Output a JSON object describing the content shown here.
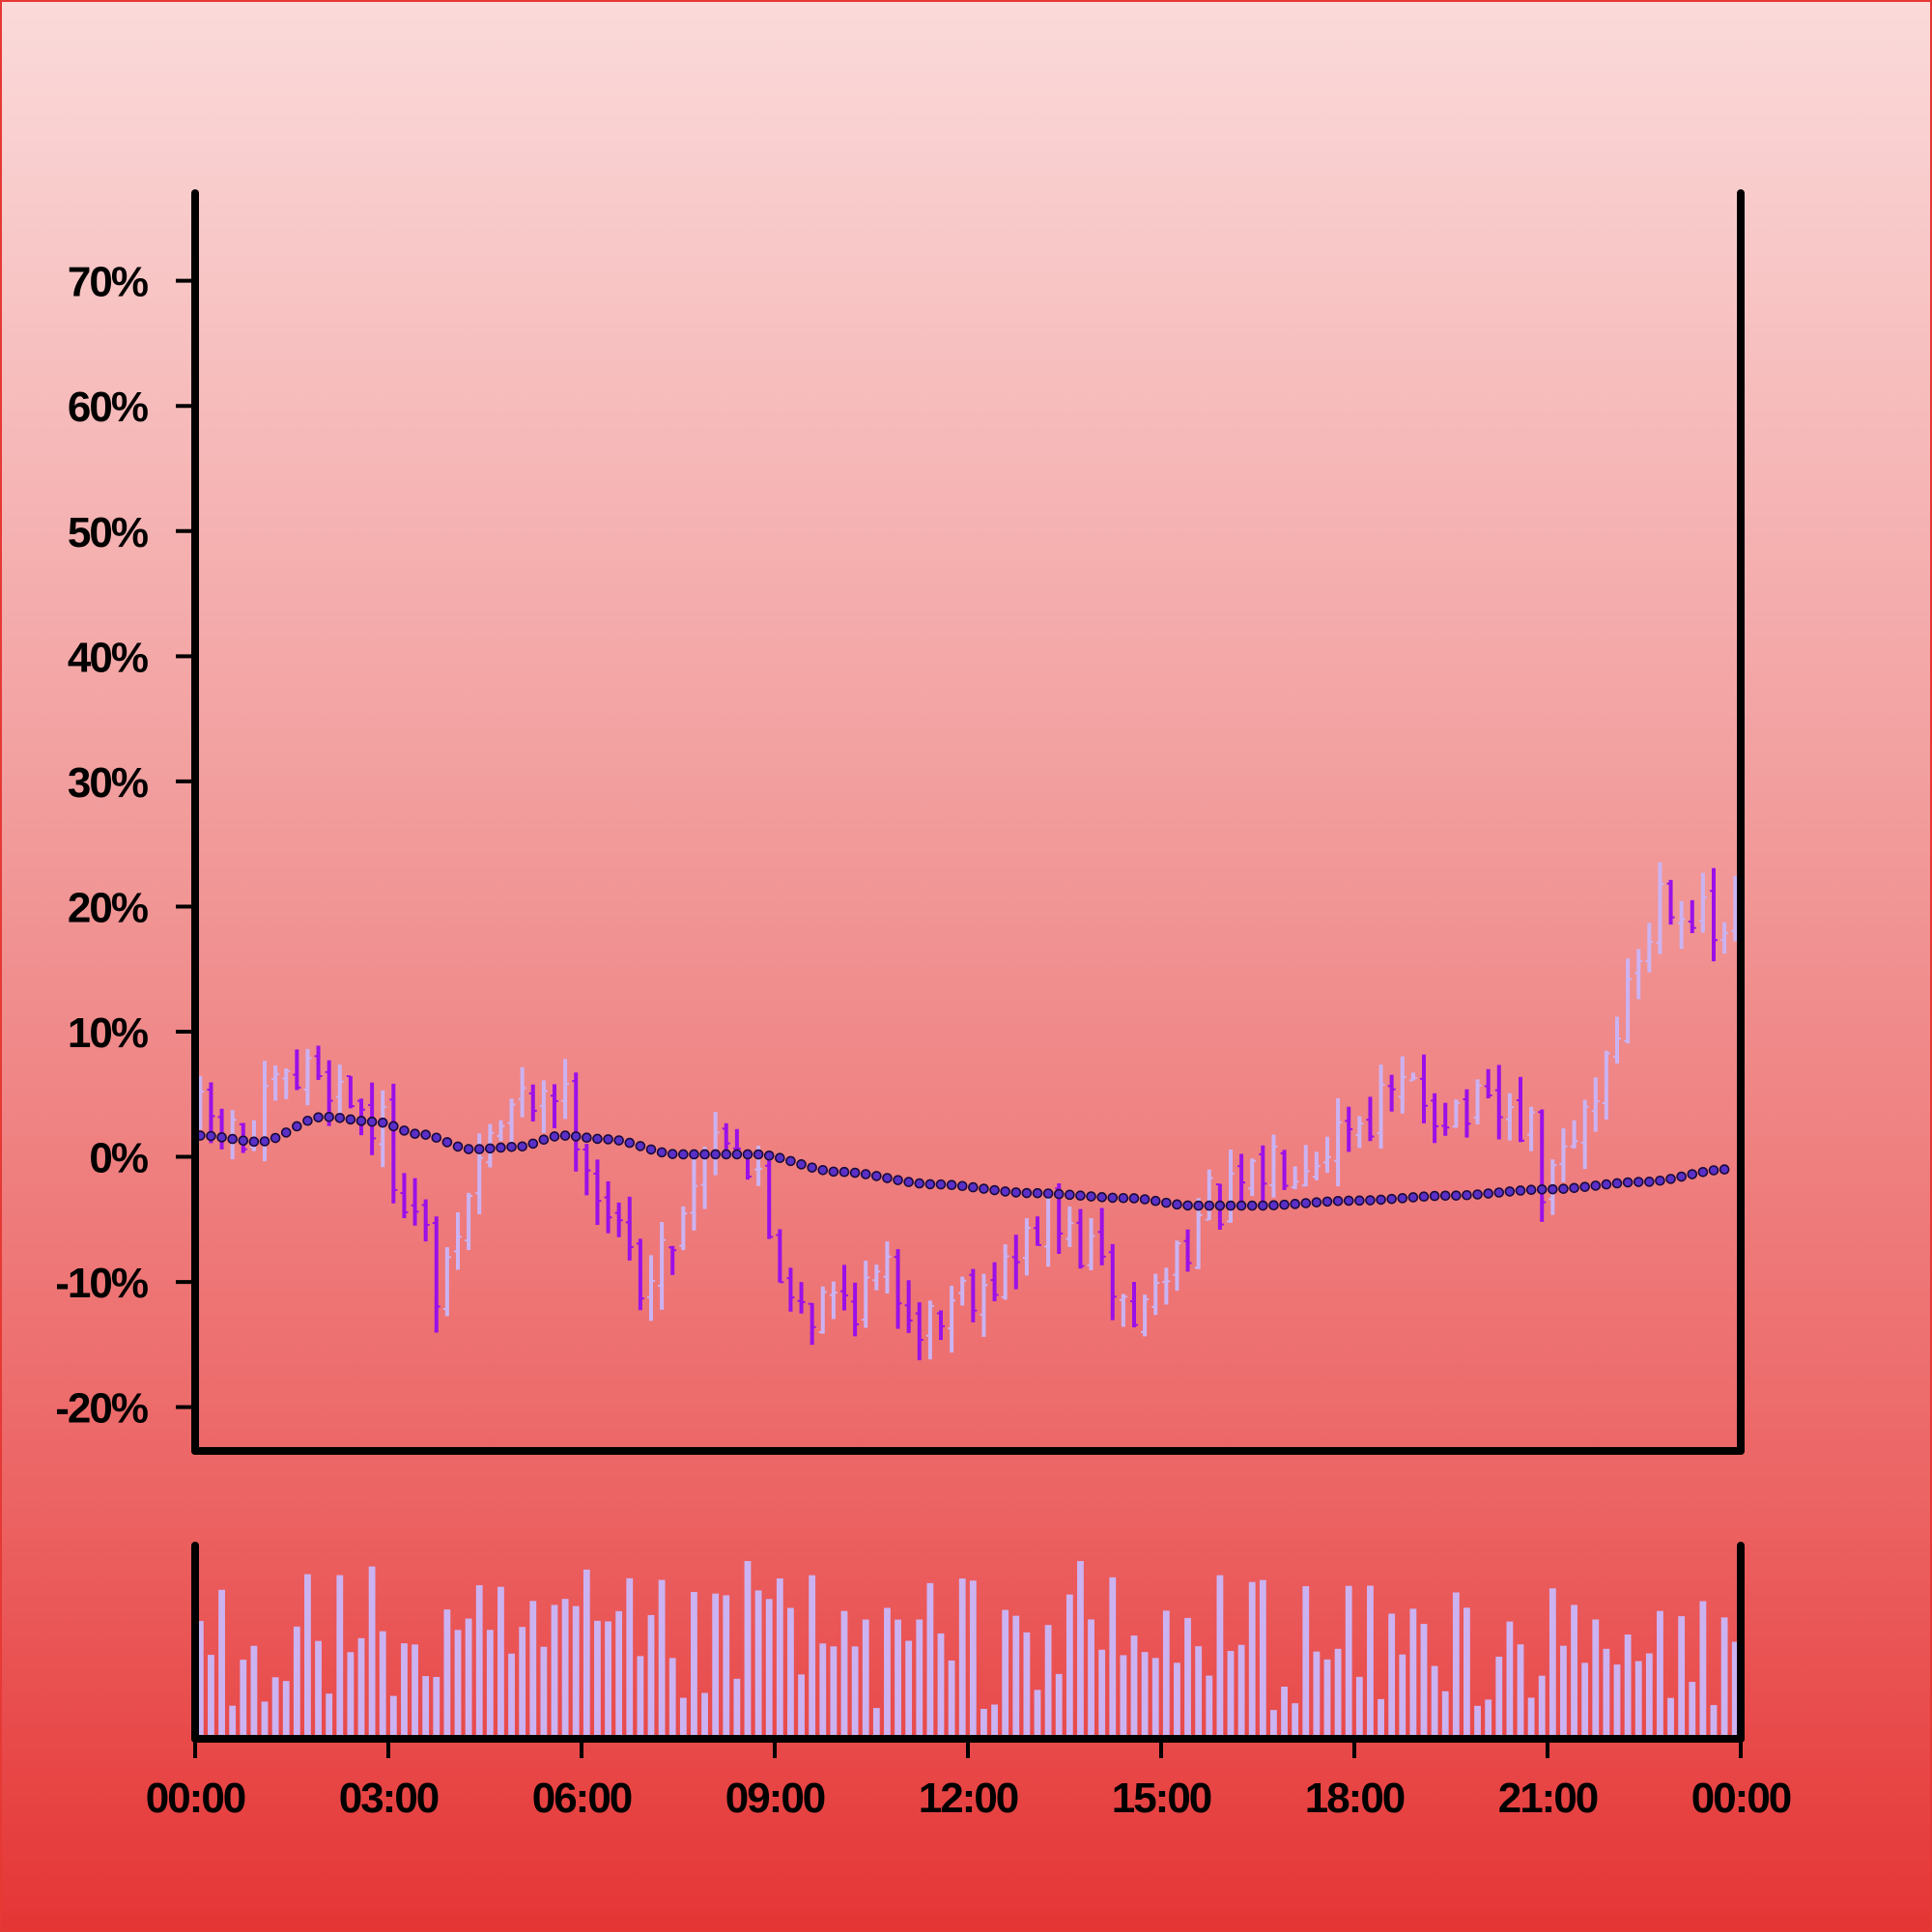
{
  "chart_data": [
    {
      "type": "ohlc",
      "y_tick_labels": [
        "70%",
        "60%",
        "50%",
        "40%",
        "30%",
        "20%",
        "10%",
        "0%",
        "-10%",
        "-20%"
      ],
      "y_tick_values": [
        70,
        60,
        50,
        40,
        30,
        20,
        10,
        0,
        -10,
        -20
      ],
      "ylim": [
        -23.5,
        77.0
      ],
      "x_tick_labels": [
        "00:00",
        "03:00",
        "06:00",
        "09:00",
        "12:00",
        "15:00",
        "18:00",
        "21:00",
        "00:00"
      ],
      "x_tick_hours": [
        0,
        3,
        6,
        9,
        12,
        15,
        18,
        21,
        24
      ],
      "xlim_hours": [
        0,
        24
      ],
      "interval_minutes": 10,
      "grid": false,
      "colors": {
        "up": "#cbb3f2",
        "down": "#9b10e8",
        "trend_dot": "#5a30c8",
        "trend_dot_edge": "#1a0a3a"
      },
      "close_anchors": [
        {
          "hour": 0.1,
          "value": 3
        },
        {
          "hour": 0.8,
          "value": 1
        },
        {
          "hour": 1.3,
          "value": 5
        },
        {
          "hour": 1.9,
          "value": 7
        },
        {
          "hour": 2.4,
          "value": 5
        },
        {
          "hour": 2.9,
          "value": 2
        },
        {
          "hour": 3.2,
          "value": -2
        },
        {
          "hour": 3.6,
          "value": -7
        },
        {
          "hour": 3.8,
          "value": -12
        },
        {
          "hour": 4.2,
          "value": -4
        },
        {
          "hour": 4.6,
          "value": 2
        },
        {
          "hour": 5.1,
          "value": 4
        },
        {
          "hour": 5.5,
          "value": 6
        },
        {
          "hour": 5.9,
          "value": 3
        },
        {
          "hour": 6.3,
          "value": -3
        },
        {
          "hour": 6.7,
          "value": -8
        },
        {
          "hour": 7.1,
          "value": -10
        },
        {
          "hour": 7.5,
          "value": -5
        },
        {
          "hour": 7.9,
          "value": 1
        },
        {
          "hour": 8.3,
          "value": 3
        },
        {
          "hour": 8.7,
          "value": -2
        },
        {
          "hour": 9.1,
          "value": -9
        },
        {
          "hour": 9.6,
          "value": -12
        },
        {
          "hour": 10.2,
          "value": -11
        },
        {
          "hour": 10.8,
          "value": -10
        },
        {
          "hour": 11.4,
          "value": -13
        },
        {
          "hour": 12.0,
          "value": -10
        },
        {
          "hour": 12.6,
          "value": -9
        },
        {
          "hour": 13.2,
          "value": -5
        },
        {
          "hour": 13.7,
          "value": -7
        },
        {
          "hour": 14.2,
          "value": -10
        },
        {
          "hour": 14.6,
          "value": -13
        },
        {
          "hour": 15.0,
          "value": -10
        },
        {
          "hour": 15.4,
          "value": -6
        },
        {
          "hour": 15.8,
          "value": -4
        },
        {
          "hour": 16.3,
          "value": -3
        },
        {
          "hour": 16.8,
          "value": 0
        },
        {
          "hour": 17.4,
          "value": 1
        },
        {
          "hour": 17.9,
          "value": 3
        },
        {
          "hour": 18.4,
          "value": 4
        },
        {
          "hour": 18.9,
          "value": 5
        },
        {
          "hour": 19.5,
          "value": 4
        },
        {
          "hour": 20.1,
          "value": 3
        },
        {
          "hour": 20.6,
          "value": 3
        },
        {
          "hour": 21.0,
          "value": -3
        },
        {
          "hour": 21.3,
          "value": 0
        },
        {
          "hour": 21.7,
          "value": 5
        },
        {
          "hour": 22.1,
          "value": 11
        },
        {
          "hour": 22.5,
          "value": 17
        },
        {
          "hour": 22.8,
          "value": 22
        },
        {
          "hour": 23.2,
          "value": 20
        },
        {
          "hour": 23.6,
          "value": 17
        },
        {
          "hour": 23.9,
          "value": 19
        }
      ],
      "moving_average_anchors": [
        {
          "hour": 0.1,
          "value": 1.7
        },
        {
          "hour": 1.0,
          "value": 1.2
        },
        {
          "hour": 2.0,
          "value": 3.2
        },
        {
          "hour": 2.8,
          "value": 2.8
        },
        {
          "hour": 3.5,
          "value": 1.8
        },
        {
          "hour": 4.3,
          "value": 0.6
        },
        {
          "hour": 5.0,
          "value": 0.8
        },
        {
          "hour": 5.7,
          "value": 1.7
        },
        {
          "hour": 6.4,
          "value": 1.4
        },
        {
          "hour": 7.5,
          "value": 0.2
        },
        {
          "hour": 8.7,
          "value": 0.2
        },
        {
          "hour": 10.0,
          "value": -1.2
        },
        {
          "hour": 11.5,
          "value": -2.2
        },
        {
          "hour": 13.0,
          "value": -2.9
        },
        {
          "hour": 14.5,
          "value": -3.3
        },
        {
          "hour": 15.5,
          "value": -3.9
        },
        {
          "hour": 16.5,
          "value": -3.9
        },
        {
          "hour": 18.0,
          "value": -3.5
        },
        {
          "hour": 19.5,
          "value": -3.1
        },
        {
          "hour": 21.0,
          "value": -2.6
        },
        {
          "hour": 22.5,
          "value": -2.0
        },
        {
          "hour": 23.8,
          "value": -1.0
        }
      ]
    },
    {
      "type": "bar",
      "description": "volume",
      "interval_minutes": 10,
      "ylim": [
        0,
        1
      ],
      "volume_level_anchors": [
        {
          "hour": 0.0,
          "value": 0.55
        },
        {
          "hour": 2.0,
          "value": 0.6
        },
        {
          "hour": 4.0,
          "value": 0.5
        },
        {
          "hour": 6.0,
          "value": 0.55
        },
        {
          "hour": 8.0,
          "value": 0.5
        },
        {
          "hour": 9.0,
          "value": 0.7
        },
        {
          "hour": 10.0,
          "value": 0.5
        },
        {
          "hour": 12.0,
          "value": 0.55
        },
        {
          "hour": 13.5,
          "value": 0.62
        },
        {
          "hour": 15.0,
          "value": 0.5
        },
        {
          "hour": 16.0,
          "value": 0.6
        },
        {
          "hour": 18.0,
          "value": 0.5
        },
        {
          "hour": 20.0,
          "value": 0.55
        },
        {
          "hour": 22.0,
          "value": 0.45
        },
        {
          "hour": 24.0,
          "value": 0.5
        }
      ],
      "bar_color": "#cbb3f2"
    }
  ]
}
